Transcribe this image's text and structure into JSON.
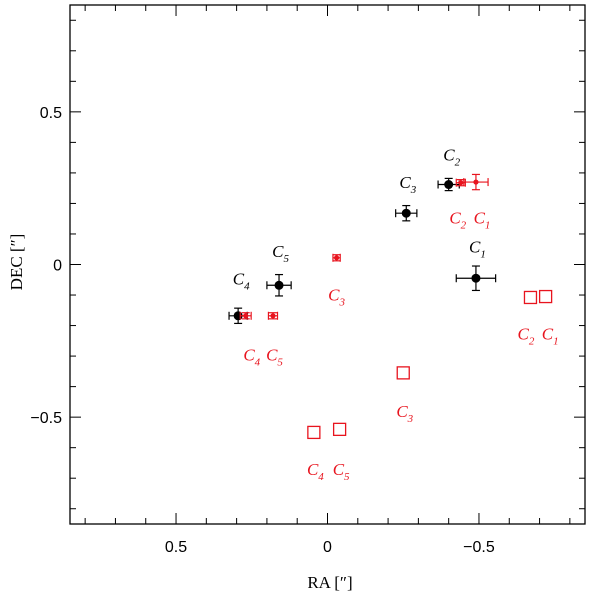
{
  "chart_data": {
    "type": "scatter",
    "title": "",
    "xlabel": "RA [″]",
    "ylabel": "DEC [″]",
    "xlim": [
      0.85,
      -0.85
    ],
    "ylim": [
      -0.85,
      0.85
    ],
    "x_ticks": [
      0.5,
      0,
      -0.5
    ],
    "x_tick_labels": [
      "0.5",
      "0",
      "−0.5"
    ],
    "y_ticks": [
      0.5,
      0,
      -0.5
    ],
    "y_tick_labels": [
      "0.5",
      "0",
      "−0.5"
    ],
    "grid": false,
    "colors": {
      "black": "#000000",
      "red": "#e8141e"
    },
    "series": [
      {
        "marker": "filled-circle",
        "color": "black",
        "points": [
          {
            "x": -0.49,
            "y": -0.045,
            "xerr": 0.065,
            "yerr": 0.04
          },
          {
            "x": -0.4,
            "y": 0.262,
            "xerr": 0.035,
            "yerr": 0.02
          },
          {
            "x": -0.26,
            "y": 0.168,
            "xerr": 0.035,
            "yerr": 0.025
          },
          {
            "x": 0.16,
            "y": -0.068,
            "xerr": 0.04,
            "yerr": 0.035
          },
          {
            "x": 0.295,
            "y": -0.168,
            "xerr": 0.03,
            "yerr": 0.025
          }
        ]
      },
      {
        "marker": "red-cross",
        "color": "red",
        "points": [
          {
            "x": -0.49,
            "y": 0.27,
            "xerr": 0.04,
            "yerr": 0.025
          },
          {
            "x": -0.44,
            "y": 0.268,
            "xerr": 0.015,
            "yerr": 0.01
          },
          {
            "x": -0.03,
            "y": 0.022,
            "xerr": 0.012,
            "yerr": 0.01
          },
          {
            "x": 0.18,
            "y": -0.168,
            "xerr": 0.015,
            "yerr": 0.01
          },
          {
            "x": 0.27,
            "y": -0.168,
            "xerr": 0.018,
            "yerr": 0.01
          }
        ]
      },
      {
        "marker": "open-square",
        "color": "red",
        "points": [
          {
            "x": -0.67,
            "y": -0.108
          },
          {
            "x": -0.72,
            "y": -0.105
          },
          {
            "x": -0.25,
            "y": -0.355
          },
          {
            "x": -0.04,
            "y": -0.54
          },
          {
            "x": 0.045,
            "y": -0.55
          }
        ]
      }
    ],
    "annotations": [
      {
        "text": "C",
        "sub": "1",
        "x": -0.495,
        "y": 0.04,
        "color": "black"
      },
      {
        "text": "C",
        "sub": "2",
        "x": -0.41,
        "y": 0.34,
        "color": "black"
      },
      {
        "text": "C",
        "sub": "3",
        "x": -0.265,
        "y": 0.25,
        "color": "black"
      },
      {
        "text": "C",
        "sub": "4",
        "x": 0.285,
        "y": -0.065,
        "color": "black"
      },
      {
        "text": "C",
        "sub": "5",
        "x": 0.155,
        "y": 0.025,
        "color": "black"
      },
      {
        "text": "C",
        "sub": "2",
        "x": -0.43,
        "y": 0.135,
        "color": "red"
      },
      {
        "text": "C",
        "sub": "1",
        "x": -0.51,
        "y": 0.135,
        "color": "red"
      },
      {
        "text": "C",
        "sub": "3",
        "x": -0.03,
        "y": -0.118,
        "color": "red"
      },
      {
        "text": "C",
        "sub": "4",
        "x": 0.25,
        "y": -0.315,
        "color": "red"
      },
      {
        "text": "C",
        "sub": "5",
        "x": 0.175,
        "y": -0.315,
        "color": "red"
      },
      {
        "text": "C",
        "sub": "2",
        "x": -0.655,
        "y": -0.245,
        "color": "red"
      },
      {
        "text": "C",
        "sub": "1",
        "x": -0.735,
        "y": -0.245,
        "color": "red"
      },
      {
        "text": "C",
        "sub": "3",
        "x": -0.255,
        "y": -0.5,
        "color": "red"
      },
      {
        "text": "C",
        "sub": "4",
        "x": 0.04,
        "y": -0.69,
        "color": "red"
      },
      {
        "text": "C",
        "sub": "5",
        "x": -0.045,
        "y": -0.69,
        "color": "red"
      }
    ]
  }
}
